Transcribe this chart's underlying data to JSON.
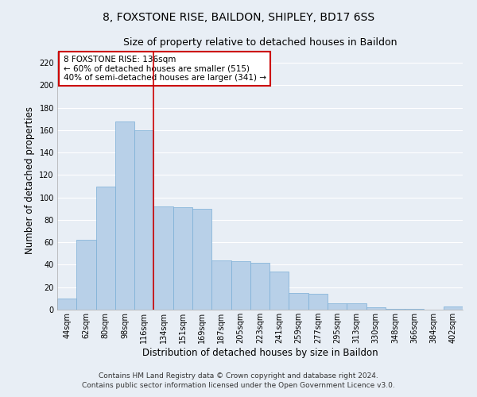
{
  "title": "8, FOXSTONE RISE, BAILDON, SHIPLEY, BD17 6SS",
  "subtitle": "Size of property relative to detached houses in Baildon",
  "xlabel": "Distribution of detached houses by size in Baildon",
  "ylabel": "Number of detached properties",
  "bar_labels": [
    "44sqm",
    "62sqm",
    "80sqm",
    "98sqm",
    "116sqm",
    "134sqm",
    "151sqm",
    "169sqm",
    "187sqm",
    "205sqm",
    "223sqm",
    "241sqm",
    "259sqm",
    "277sqm",
    "295sqm",
    "313sqm",
    "330sqm",
    "348sqm",
    "366sqm",
    "384sqm",
    "402sqm"
  ],
  "bar_values": [
    10,
    62,
    110,
    168,
    160,
    92,
    91,
    90,
    44,
    43,
    42,
    34,
    15,
    14,
    6,
    6,
    2,
    1,
    1,
    0,
    3
  ],
  "bar_color": "#b8d0e8",
  "bar_edge_color": "#7aaed6",
  "vline_x": 4.5,
  "vline_color": "#cc0000",
  "ylim": [
    0,
    230
  ],
  "yticks": [
    0,
    20,
    40,
    60,
    80,
    100,
    120,
    140,
    160,
    180,
    200,
    220
  ],
  "annotation_title": "8 FOXSTONE RISE: 136sqm",
  "annotation_line1": "← 60% of detached houses are smaller (515)",
  "annotation_line2": "40% of semi-detached houses are larger (341) →",
  "annotation_box_color": "#ffffff",
  "annotation_box_edge": "#cc0000",
  "footer1": "Contains HM Land Registry data © Crown copyright and database right 2024.",
  "footer2": "Contains public sector information licensed under the Open Government Licence v3.0.",
  "background_color": "#e8eef5",
  "plot_bg_color": "#e8eef5",
  "grid_color": "#ffffff",
  "title_fontsize": 10,
  "subtitle_fontsize": 9,
  "axis_label_fontsize": 8.5,
  "tick_fontsize": 7,
  "annotation_fontsize": 7.5,
  "footer_fontsize": 6.5
}
